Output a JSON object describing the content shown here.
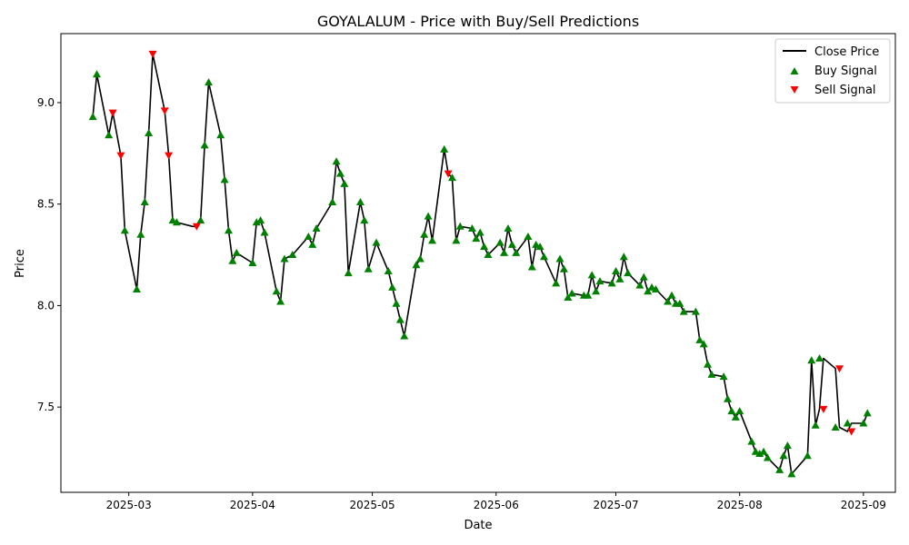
{
  "chart_data": {
    "type": "line",
    "title": "GOYALALUM - Price with Buy/Sell Predictions",
    "xlabel": "Date",
    "ylabel": "Price",
    "xlim": [
      "2025-02-12",
      "2025-09-09"
    ],
    "ylim": [
      7.08,
      9.34
    ],
    "x_ticks": [
      "2025-03",
      "2025-04",
      "2025-05",
      "2025-06",
      "2025-07",
      "2025-08",
      "2025-09"
    ],
    "y_ticks": [
      7.5,
      8.0,
      8.5,
      9.0
    ],
    "legend": {
      "position": "top-right",
      "entries": [
        "Close Price",
        "Buy Signal",
        "Sell Signal"
      ]
    },
    "colors": {
      "close": "#000000",
      "buy": "#008000",
      "sell": "#ff0000"
    },
    "series": [
      {
        "name": "Close Price",
        "x": [
          "2025-02-20",
          "2025-02-21",
          "2025-02-24",
          "2025-02-25",
          "2025-02-27",
          "2025-02-28",
          "2025-03-03",
          "2025-03-04",
          "2025-03-05",
          "2025-03-06",
          "2025-03-07",
          "2025-03-10",
          "2025-03-11",
          "2025-03-12",
          "2025-03-13",
          "2025-03-17",
          "2025-03-18",
          "2025-03-19",
          "2025-03-20",
          "2025-03-21",
          "2025-03-24",
          "2025-03-25",
          "2025-03-26",
          "2025-03-27",
          "2025-03-28",
          "2025-04-01",
          "2025-04-02",
          "2025-04-03",
          "2025-04-04",
          "2025-04-07",
          "2025-04-08",
          "2025-04-09",
          "2025-04-11",
          "2025-04-15",
          "2025-04-16",
          "2025-04-17",
          "2025-04-21",
          "2025-04-22",
          "2025-04-23",
          "2025-04-24",
          "2025-04-25",
          "2025-04-28",
          "2025-04-29",
          "2025-04-30",
          "2025-05-02",
          "2025-05-05",
          "2025-05-06",
          "2025-05-07",
          "2025-05-08",
          "2025-05-09",
          "2025-05-12",
          "2025-05-13",
          "2025-05-14",
          "2025-05-15",
          "2025-05-16",
          "2025-05-19",
          "2025-05-20",
          "2025-05-21",
          "2025-05-22",
          "2025-05-23",
          "2025-05-26",
          "2025-05-27",
          "2025-05-28",
          "2025-05-29",
          "2025-05-30",
          "2025-06-02",
          "2025-06-03",
          "2025-06-04",
          "2025-06-05",
          "2025-06-06",
          "2025-06-09",
          "2025-06-10",
          "2025-06-11",
          "2025-06-12",
          "2025-06-13",
          "2025-06-16",
          "2025-06-17",
          "2025-06-18",
          "2025-06-19",
          "2025-06-20",
          "2025-06-23",
          "2025-06-24",
          "2025-06-25",
          "2025-06-26",
          "2025-06-27",
          "2025-06-30",
          "2025-07-01",
          "2025-07-02",
          "2025-07-03",
          "2025-07-04",
          "2025-07-07",
          "2025-07-08",
          "2025-07-09",
          "2025-07-10",
          "2025-07-11",
          "2025-07-14",
          "2025-07-15",
          "2025-07-16",
          "2025-07-17",
          "2025-07-18",
          "2025-07-21",
          "2025-07-22",
          "2025-07-23",
          "2025-07-24",
          "2025-07-25",
          "2025-07-28",
          "2025-07-29",
          "2025-07-30",
          "2025-07-31",
          "2025-08-01",
          "2025-08-04",
          "2025-08-05",
          "2025-08-06",
          "2025-08-07",
          "2025-08-08",
          "2025-08-11",
          "2025-08-12",
          "2025-08-13",
          "2025-08-14",
          "2025-08-18",
          "2025-08-19",
          "2025-08-20",
          "2025-08-21",
          "2025-08-22",
          "2025-08-25",
          "2025-08-26",
          "2025-08-28",
          "2025-08-29",
          "2025-09-01",
          "2025-09-02"
        ],
        "values": [
          8.93,
          9.14,
          8.84,
          8.95,
          8.74,
          8.37,
          8.08,
          8.35,
          8.51,
          8.85,
          9.24,
          8.96,
          8.74,
          8.42,
          8.41,
          8.39,
          8.39,
          8.42,
          8.79,
          9.1,
          8.84,
          8.62,
          8.37,
          8.22,
          8.26,
          8.21,
          8.41,
          8.42,
          8.36,
          8.07,
          8.02,
          8.23,
          8.25,
          8.34,
          8.3,
          8.38,
          8.51,
          8.71,
          8.65,
          8.6,
          8.16,
          8.51,
          8.42,
          8.18,
          8.31,
          8.17,
          8.09,
          8.01,
          7.93,
          7.85,
          8.2,
          8.23,
          8.35,
          8.44,
          8.32,
          8.77,
          8.65,
          8.63,
          8.32,
          8.39,
          8.38,
          8.33,
          8.36,
          8.29,
          8.25,
          8.31,
          8.26,
          8.38,
          8.3,
          8.26,
          8.34,
          8.19,
          8.3,
          8.29,
          8.24,
          8.11,
          8.23,
          8.18,
          8.04,
          8.06,
          8.05,
          8.05,
          8.15,
          8.07,
          8.12,
          8.11,
          8.17,
          8.13,
          8.24,
          8.16,
          8.1,
          8.14,
          8.07,
          8.09,
          8.08,
          8.02,
          8.05,
          8.01,
          8.01,
          7.97,
          7.97,
          7.83,
          7.81,
          7.71,
          7.66,
          7.65,
          7.54,
          7.48,
          7.45,
          7.48,
          7.33,
          7.28,
          7.27,
          7.28,
          7.25,
          7.19,
          7.26,
          7.31,
          7.17,
          7.26,
          7.73,
          7.41,
          7.49,
          7.74,
          7.69,
          7.4,
          7.38,
          7.42,
          7.42,
          7.47
        ]
      },
      {
        "name": "Buy Signal",
        "x": [
          "2025-02-20",
          "2025-02-21",
          "2025-02-24",
          "2025-02-28",
          "2025-03-03",
          "2025-03-04",
          "2025-03-05",
          "2025-03-06",
          "2025-03-12",
          "2025-03-13",
          "2025-03-19",
          "2025-03-20",
          "2025-03-21",
          "2025-03-24",
          "2025-03-25",
          "2025-03-26",
          "2025-03-27",
          "2025-03-28",
          "2025-04-01",
          "2025-04-02",
          "2025-04-03",
          "2025-04-04",
          "2025-04-07",
          "2025-04-08",
          "2025-04-09",
          "2025-04-11",
          "2025-04-15",
          "2025-04-16",
          "2025-04-17",
          "2025-04-21",
          "2025-04-22",
          "2025-04-23",
          "2025-04-24",
          "2025-04-25",
          "2025-04-28",
          "2025-04-29",
          "2025-04-30",
          "2025-05-02",
          "2025-05-05",
          "2025-05-06",
          "2025-05-07",
          "2025-05-08",
          "2025-05-09",
          "2025-05-12",
          "2025-05-13",
          "2025-05-14",
          "2025-05-15",
          "2025-05-16",
          "2025-05-19",
          "2025-05-21",
          "2025-05-22",
          "2025-05-23",
          "2025-05-26",
          "2025-05-27",
          "2025-05-28",
          "2025-05-29",
          "2025-05-30",
          "2025-06-02",
          "2025-06-03",
          "2025-06-04",
          "2025-06-05",
          "2025-06-06",
          "2025-06-09",
          "2025-06-10",
          "2025-06-11",
          "2025-06-12",
          "2025-06-13",
          "2025-06-16",
          "2025-06-17",
          "2025-06-18",
          "2025-06-19",
          "2025-06-20",
          "2025-06-23",
          "2025-06-24",
          "2025-06-25",
          "2025-06-26",
          "2025-06-27",
          "2025-06-30",
          "2025-07-01",
          "2025-07-02",
          "2025-07-03",
          "2025-07-04",
          "2025-07-07",
          "2025-07-08",
          "2025-07-09",
          "2025-07-10",
          "2025-07-11",
          "2025-07-14",
          "2025-07-15",
          "2025-07-16",
          "2025-07-17",
          "2025-07-18",
          "2025-07-21",
          "2025-07-22",
          "2025-07-23",
          "2025-07-24",
          "2025-07-25",
          "2025-07-28",
          "2025-07-29",
          "2025-07-30",
          "2025-07-31",
          "2025-08-01",
          "2025-08-04",
          "2025-08-05",
          "2025-08-06",
          "2025-08-07",
          "2025-08-08",
          "2025-08-11",
          "2025-08-12",
          "2025-08-13",
          "2025-08-14",
          "2025-08-18",
          "2025-08-19",
          "2025-08-20",
          "2025-08-21",
          "2025-08-25",
          "2025-08-28",
          "2025-09-01",
          "2025-09-02"
        ],
        "values": [
          8.93,
          9.14,
          8.84,
          8.37,
          8.08,
          8.35,
          8.51,
          8.85,
          8.42,
          8.41,
          8.42,
          8.79,
          9.1,
          8.84,
          8.62,
          8.37,
          8.22,
          8.26,
          8.21,
          8.41,
          8.42,
          8.36,
          8.07,
          8.02,
          8.23,
          8.25,
          8.34,
          8.3,
          8.38,
          8.51,
          8.71,
          8.65,
          8.6,
          8.16,
          8.51,
          8.42,
          8.18,
          8.31,
          8.17,
          8.09,
          8.01,
          7.93,
          7.85,
          8.2,
          8.23,
          8.35,
          8.44,
          8.32,
          8.77,
          8.63,
          8.32,
          8.39,
          8.38,
          8.33,
          8.36,
          8.29,
          8.25,
          8.31,
          8.26,
          8.38,
          8.3,
          8.26,
          8.34,
          8.19,
          8.3,
          8.29,
          8.24,
          8.11,
          8.23,
          8.18,
          8.04,
          8.06,
          8.05,
          8.05,
          8.15,
          8.07,
          8.12,
          8.11,
          8.17,
          8.13,
          8.24,
          8.16,
          8.1,
          8.14,
          8.07,
          8.09,
          8.08,
          8.02,
          8.05,
          8.01,
          8.01,
          7.97,
          7.97,
          7.83,
          7.81,
          7.71,
          7.66,
          7.65,
          7.54,
          7.48,
          7.45,
          7.48,
          7.33,
          7.28,
          7.27,
          7.28,
          7.25,
          7.19,
          7.26,
          7.31,
          7.17,
          7.26,
          7.73,
          7.41,
          7.74,
          7.4,
          7.42,
          7.42,
          7.47
        ]
      },
      {
        "name": "Sell Signal",
        "x": [
          "2025-02-25",
          "2025-02-27",
          "2025-03-07",
          "2025-03-10",
          "2025-03-11",
          "2025-03-18",
          "2025-05-20",
          "2025-08-22",
          "2025-08-26",
          "2025-08-29"
        ],
        "values": [
          8.95,
          8.74,
          9.24,
          8.96,
          8.74,
          8.39,
          8.65,
          7.49,
          7.69,
          7.38
        ]
      }
    ]
  }
}
